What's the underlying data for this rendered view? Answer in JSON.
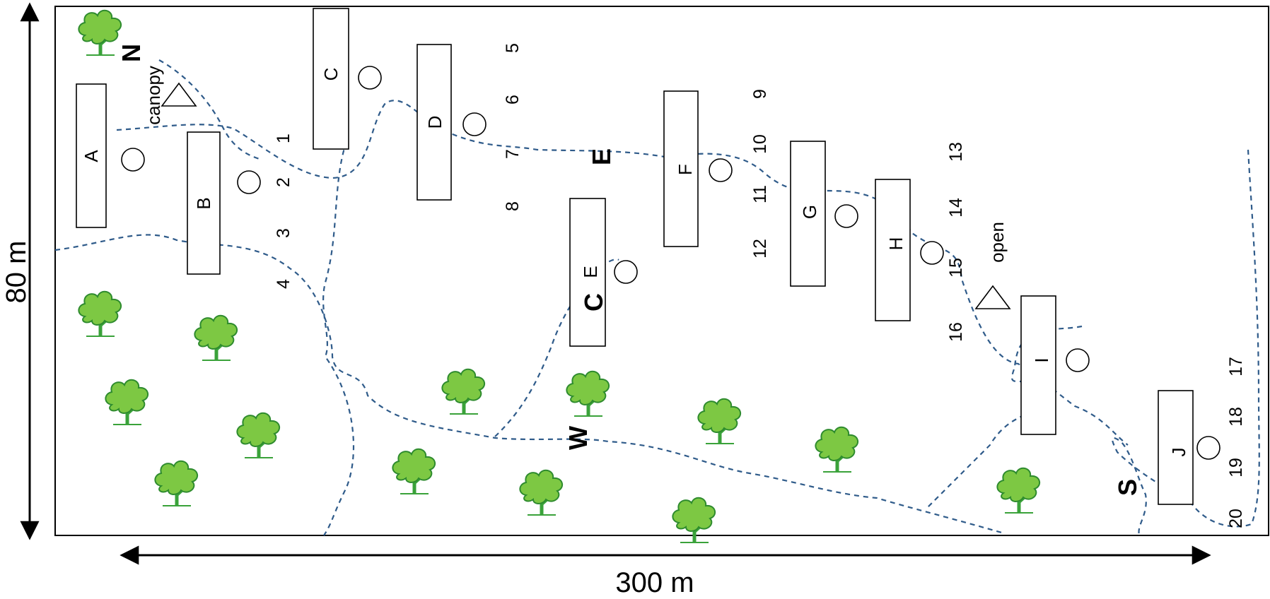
{
  "dimensions": {
    "width_label": "300 m",
    "height_label": "80 m"
  },
  "plots": [
    "A",
    "B",
    "C",
    "D",
    "E",
    "F",
    "G",
    "H",
    "I",
    "J"
  ],
  "point_numbers": [
    "1",
    "2",
    "3",
    "4",
    "5",
    "6",
    "7",
    "8",
    "9",
    "10",
    "11",
    "12",
    "13",
    "14",
    "15",
    "16",
    "17",
    "18",
    "19",
    "20"
  ],
  "directions": {
    "north": "N",
    "east": "E",
    "center": "C",
    "west": "W",
    "south": "S"
  },
  "sites": {
    "canopy": "canopy",
    "open": "open"
  },
  "colors": {
    "trail": "#2f5b8a",
    "tree_leaf": "#7dc843",
    "tree_outline": "#2e8b2e",
    "tree_trunk": "#3aa23a"
  },
  "icons": [
    "tree-icon",
    "circle-marker-icon",
    "triangle-marker-icon"
  ]
}
